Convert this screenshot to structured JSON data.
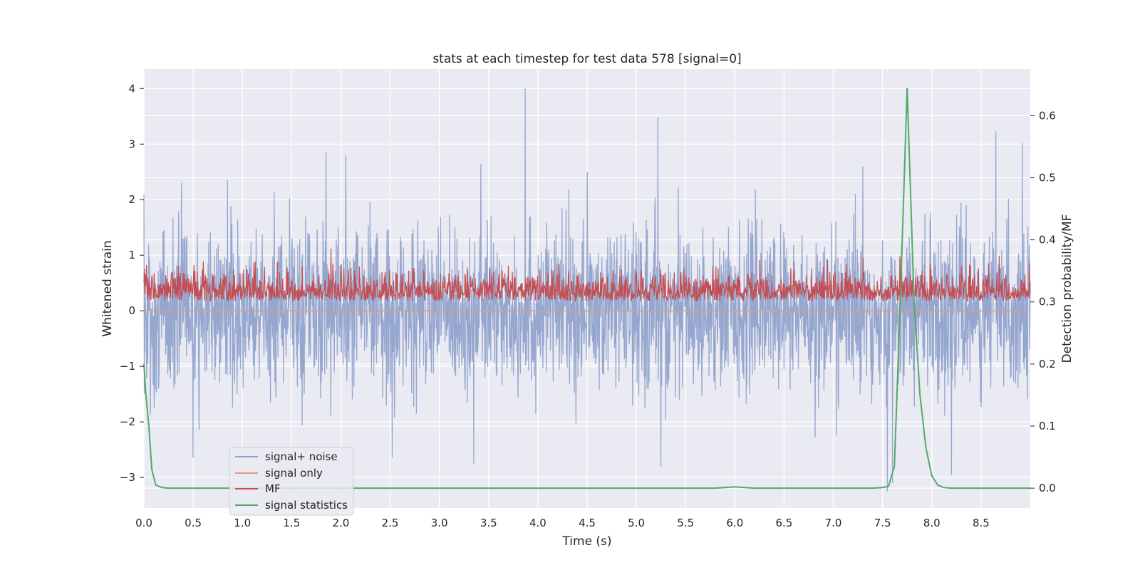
{
  "chart_data": {
    "type": "line",
    "title": "stats at each timestep for test data 578 [signal=0]",
    "xlabel": "Time (s)",
    "ylabel": "Whitened strain",
    "y2label": "Detection probability/MF",
    "xlim": [
      0.0,
      9.0
    ],
    "ylim": [
      -3.55,
      4.35
    ],
    "y2lim": [
      -0.032,
      0.675
    ],
    "xticks": [
      "0.0",
      "0.5",
      "1.0",
      "1.5",
      "2.0",
      "2.5",
      "3.0",
      "3.5",
      "4.0",
      "4.5",
      "5.0",
      "5.5",
      "6.0",
      "6.5",
      "7.0",
      "7.5",
      "8.0",
      "8.5"
    ],
    "yticks": [
      "4",
      "3",
      "2",
      "1",
      "0",
      "−1",
      "−2",
      "−3"
    ],
    "y2ticks": [
      "0.6",
      "0.5",
      "0.4",
      "0.3",
      "0.2",
      "0.1",
      "0.0"
    ],
    "grid": true,
    "legend_placement": "lower-left",
    "series": [
      {
        "name": "signal+ noise",
        "axis": "left",
        "color": "#8da0cb",
        "style": "dense noise, amplitude roughly -3.3 to 4.0",
        "spikes": [
          [
            0.0,
            2.1
          ],
          [
            0.38,
            2.3
          ],
          [
            0.85,
            2.35
          ],
          [
            1.85,
            2.85
          ],
          [
            2.05,
            2.8
          ],
          [
            3.42,
            2.65
          ],
          [
            3.87,
            4.0
          ],
          [
            4.5,
            2.5
          ],
          [
            5.22,
            3.48
          ],
          [
            7.3,
            2.6
          ],
          [
            8.65,
            3.23
          ],
          [
            8.92,
            3.02
          ],
          [
            0.5,
            -2.65
          ],
          [
            2.52,
            -2.65
          ],
          [
            3.35,
            -2.75
          ],
          [
            5.25,
            -2.8
          ],
          [
            7.55,
            -3.25
          ],
          [
            7.6,
            -3.1
          ],
          [
            8.2,
            -2.95
          ]
        ]
      },
      {
        "name": "signal only",
        "axis": "left",
        "color": "#e9967a",
        "x": [
          0.0,
          9.0
        ],
        "values": [
          0.0,
          0.0
        ]
      },
      {
        "name": "MF",
        "axis": "right",
        "color": "#c44e52",
        "style": "dense noise around 0.32, range 0.3 to 0.39"
      },
      {
        "name": "signal statistics",
        "axis": "right",
        "color": "#55a868",
        "x": [
          0.0,
          0.02,
          0.05,
          0.08,
          0.12,
          0.18,
          0.25,
          0.4,
          1.0,
          2.0,
          3.0,
          4.0,
          5.0,
          5.8,
          6.0,
          6.2,
          7.0,
          7.4,
          7.5,
          7.56,
          7.62,
          7.68,
          7.75,
          7.82,
          7.88,
          7.94,
          8.0,
          8.06,
          8.12,
          8.2,
          8.5,
          9.0
        ],
        "values": [
          0.2,
          0.15,
          0.1,
          0.03,
          0.005,
          0.001,
          0.0,
          0.0,
          0.0,
          0.0,
          0.0,
          0.0,
          0.0,
          0.0,
          0.002,
          0.0,
          0.0,
          0.0,
          0.001,
          0.003,
          0.035,
          0.3,
          0.645,
          0.3,
          0.15,
          0.065,
          0.02,
          0.005,
          0.001,
          0.0,
          0.0,
          0.0
        ]
      }
    ]
  }
}
